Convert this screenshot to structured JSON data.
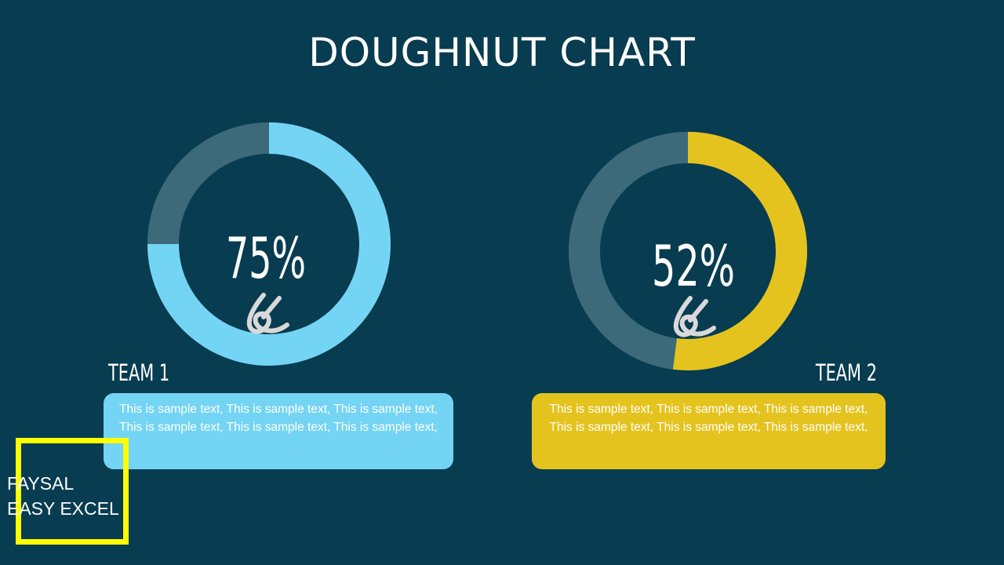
{
  "slide": {
    "title": "DOUGHNUT CHART"
  },
  "colors": {
    "background": "#083c50",
    "track": "#3c6a7a",
    "team1": "#74d4f4",
    "team2": "#e5c31f",
    "brand_frame": "#ffff00"
  },
  "chart_data": [
    {
      "type": "pie",
      "variant": "doughnut",
      "title": "",
      "center_label": "75%",
      "value_percent": 75,
      "label": "TEAM 1",
      "color": "#74d4f4",
      "icon": "handshake-icon"
    },
    {
      "type": "pie",
      "variant": "doughnut",
      "title": "",
      "center_label": "52%",
      "value_percent": 52,
      "label": "TEAM 2",
      "color": "#e5c31f",
      "icon": "handshake-icon"
    }
  ],
  "teams": [
    {
      "name": "TEAM 1",
      "description": "This is sample text, This is sample text, This is sample text, This is sample text, This is sample text, This is sample text,"
    },
    {
      "name": "TEAM 2",
      "description": "This is sample text, This is sample text, This is sample text, This is sample text, This is sample text, This is sample text,"
    }
  ],
  "branding": {
    "line1": "FAYSAL",
    "line2": "EASY EXCEL"
  }
}
